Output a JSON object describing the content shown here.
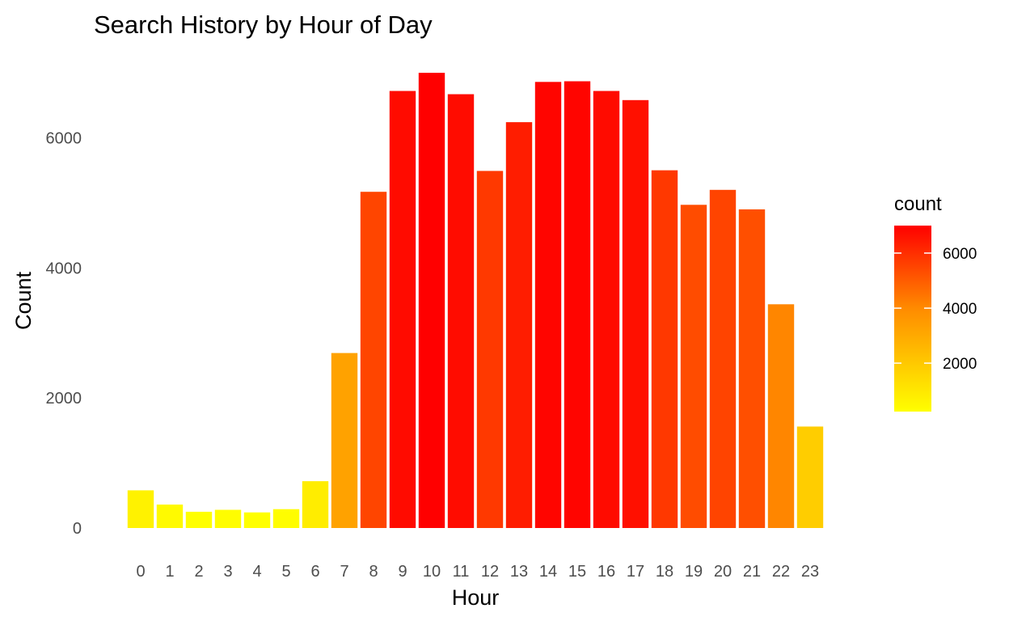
{
  "chart_data": {
    "type": "bar",
    "title": "Search History by Hour of Day",
    "xlabel": "Hour",
    "ylabel": "Count",
    "categories": [
      "0",
      "1",
      "2",
      "3",
      "4",
      "5",
      "6",
      "7",
      "8",
      "9",
      "10",
      "11",
      "12",
      "13",
      "14",
      "15",
      "16",
      "17",
      "18",
      "19",
      "20",
      "21",
      "22",
      "23"
    ],
    "values": [
      580,
      360,
      250,
      280,
      240,
      290,
      720,
      2690,
      5170,
      6720,
      7000,
      6670,
      5490,
      6240,
      6860,
      6870,
      6720,
      6580,
      5500,
      4970,
      5200,
      4900,
      3440,
      1560
    ],
    "y_ticks": [
      "0",
      "2000",
      "4000",
      "6000"
    ],
    "y_tick_values": [
      0,
      2000,
      4000,
      6000
    ],
    "ylim": [
      0,
      7000
    ],
    "grid": false,
    "fill_scale": {
      "low": "#FFFF00",
      "mid": "#FF7F00",
      "high": "#FF0000",
      "min": 240,
      "max": 7000
    },
    "legend": {
      "title": "count",
      "position": "right",
      "ticks": [
        "2000",
        "4000",
        "6000"
      ],
      "tick_values": [
        2000,
        4000,
        6000
      ]
    }
  }
}
